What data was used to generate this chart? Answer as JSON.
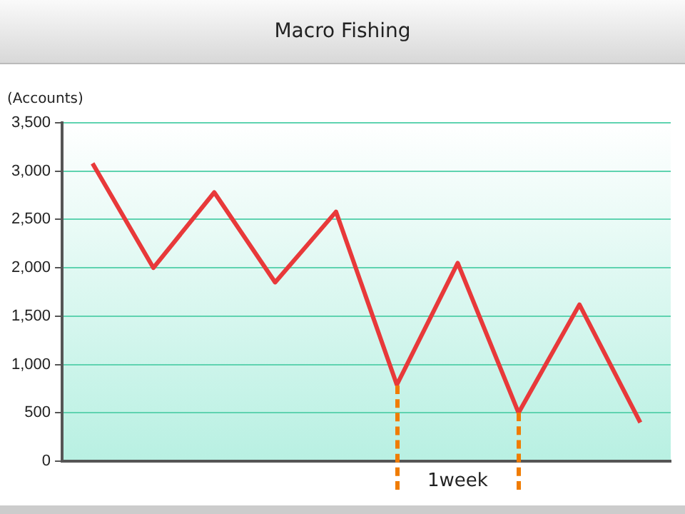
{
  "chart_data": {
    "type": "line",
    "title": "Macro Fishing",
    "ylabel": "(Accounts)",
    "categories": [
      null,
      null,
      null,
      null,
      null,
      null,
      null,
      null,
      null,
      null
    ],
    "tick_labels": "y",
    "series": [
      {
        "color": "#e8393a",
        "values": [
          3080,
          2000,
          2780,
          1850,
          2580,
          790,
          2050,
          500,
          1620,
          400
        ]
      }
    ],
    "ylim": [
      0,
      3500
    ],
    "yticks": [
      0,
      500,
      {
        "value": 1000,
        "label": "1,000"
      },
      {
        "value": 1500,
        "label": "1,500"
      },
      {
        "value": 2000,
        "label": "2,000"
      },
      {
        "value": 2500,
        "label": "2,500"
      },
      {
        "value": 3000,
        "label": "3,000"
      },
      {
        "value": 3500,
        "label": "3,500"
      }
    ],
    "grid": "y",
    "legend": false,
    "marker": "none",
    "line_style": "solid",
    "annotations": [
      "1week"
    ]
  }
}
